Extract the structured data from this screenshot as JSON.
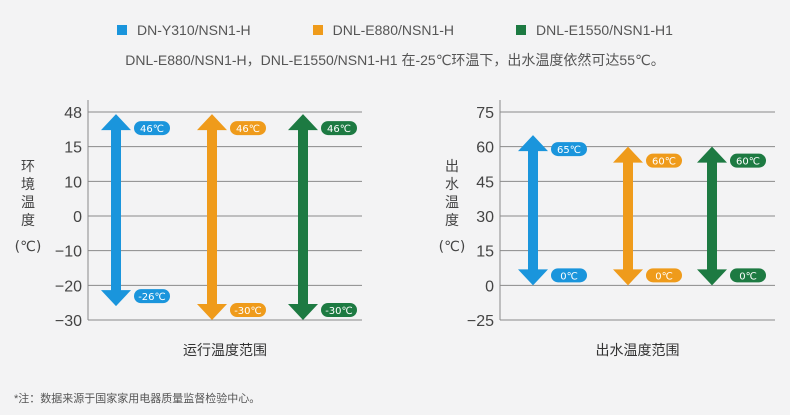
{
  "legend": [
    {
      "label": "DN-Y310/NSN1-H",
      "color": "#1a95dc"
    },
    {
      "label": "DNL-E880/NSN1-H",
      "color": "#ef9b1b"
    },
    {
      "label": "DNL-E1550/NSN1-H1",
      "color": "#1d7a42"
    }
  ],
  "subtitle": "DNL-E880/NSN1-H，DNL-E1550/NSN1-H1 在-25℃环温下，出水温度依然可达55℃。",
  "footnote": "*注：数据来源于国家家用电器质量监督检验中心。",
  "chart_data": [
    {
      "type": "range-arrow",
      "xlabel": "运行温度范围",
      "ylabel": "环境温度(℃)",
      "yticks": [
        48,
        15,
        10,
        0,
        -10,
        -20,
        -30
      ],
      "ylim": [
        -30,
        48
      ],
      "series": [
        {
          "name": "DN-Y310/NSN1-H",
          "max": 46,
          "min": -26,
          "max_label": "46℃",
          "min_label": "-26℃",
          "color": "#1a95dc"
        },
        {
          "name": "DNL-E880/NSN1-H",
          "max": 46,
          "min": -30,
          "max_label": "46℃",
          "min_label": "-30℃",
          "color": "#ef9b1b"
        },
        {
          "name": "DNL-E1550/NSN1-H1",
          "max": 46,
          "min": -30,
          "max_label": "46℃",
          "min_label": "-30℃",
          "color": "#1d7a42"
        }
      ]
    },
    {
      "type": "range-arrow",
      "xlabel": "出水温度范围",
      "ylabel": "出水温度(℃)",
      "yticks": [
        75,
        60,
        45,
        30,
        15,
        0,
        -25
      ],
      "ylim": [
        -25,
        75
      ],
      "series": [
        {
          "name": "DN-Y310/NSN1-H",
          "max": 65,
          "min": 0,
          "max_label": "65℃",
          "min_label": "0℃",
          "color": "#1a95dc"
        },
        {
          "name": "DNL-E880/NSN1-H",
          "max": 60,
          "min": 0,
          "max_label": "60℃",
          "min_label": "0℃",
          "color": "#ef9b1b"
        },
        {
          "name": "DNL-E1550/NSN1-H1",
          "max": 60,
          "min": 0,
          "max_label": "60℃",
          "min_label": "0℃",
          "color": "#1d7a42"
        }
      ]
    }
  ]
}
